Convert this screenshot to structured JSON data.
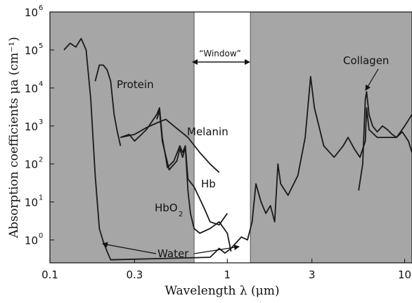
{
  "chart_data": {
    "type": "line",
    "xscale": "log",
    "yscale": "log",
    "xlim": [
      0.1,
      11
    ],
    "ylim": [
      0.25,
      1000000
    ],
    "xlabel": "Wavelength λ (μm)",
    "ylabel": "Absorption coefficients μa (cm⁻¹)",
    "x_ticks": [
      0.1,
      0.3,
      1,
      3,
      10
    ],
    "x_tick_labels": [
      "0.1",
      "0.3",
      "1",
      "3",
      "10"
    ],
    "y_ticks": [
      1,
      10,
      100,
      1000,
      10000,
      100000,
      1000000
    ],
    "y_tick_exponents": [
      "0",
      "1",
      "2",
      "3",
      "4",
      "5",
      "6"
    ],
    "y_tick_base": "10",
    "shaded_regions": [
      [
        0.1,
        0.65
      ],
      [
        1.35,
        11
      ]
    ],
    "shade_color": "#a6a6a6",
    "window": {
      "label": "“Window”",
      "range": [
        0.65,
        1.35
      ]
    },
    "series": [
      {
        "name": "Water",
        "points": [
          [
            0.12,
            100000
          ],
          [
            0.13,
            150000
          ],
          [
            0.14,
            120000
          ],
          [
            0.15,
            200000
          ],
          [
            0.16,
            100000
          ],
          [
            0.17,
            5000
          ],
          [
            0.18,
            50
          ],
          [
            0.19,
            2
          ],
          [
            0.2,
            0.9
          ],
          [
            0.21,
            0.5
          ],
          [
            0.22,
            0.3
          ],
          [
            0.8,
            0.35
          ],
          [
            0.9,
            0.6
          ],
          [
            0.97,
            0.45
          ],
          [
            1.05,
            0.6
          ],
          [
            1.2,
            1.2
          ],
          [
            1.3,
            1
          ],
          [
            1.38,
            3
          ],
          [
            1.45,
            30
          ],
          [
            1.55,
            10
          ],
          [
            1.65,
            5
          ],
          [
            1.75,
            8
          ],
          [
            1.85,
            3
          ],
          [
            1.93,
            100
          ],
          [
            2.0,
            30
          ],
          [
            2.2,
            15
          ],
          [
            2.5,
            50
          ],
          [
            2.75,
            500
          ],
          [
            2.95,
            20000
          ],
          [
            3.1,
            3000
          ],
          [
            3.5,
            300
          ],
          [
            4.0,
            150
          ],
          [
            4.5,
            300
          ],
          [
            4.8,
            500
          ],
          [
            5.2,
            250
          ],
          [
            5.6,
            150
          ],
          [
            6.0,
            400
          ],
          [
            6.1,
            3000
          ],
          [
            6.3,
            800
          ],
          [
            7,
            500
          ],
          [
            8,
            500
          ],
          [
            9,
            500
          ],
          [
            10,
            1000
          ],
          [
            11,
            2000
          ]
        ]
      },
      {
        "name": "Protein",
        "points": [
          [
            0.18,
            15000
          ],
          [
            0.19,
            40000
          ],
          [
            0.2,
            40000
          ],
          [
            0.21,
            30000
          ],
          [
            0.22,
            15000
          ],
          [
            0.23,
            2000
          ],
          [
            0.24,
            700
          ],
          [
            0.25,
            300
          ]
        ]
      },
      {
        "name": "Melanin",
        "points": [
          [
            0.25,
            500
          ],
          [
            0.3,
            600
          ],
          [
            0.35,
            900
          ],
          [
            0.4,
            1200
          ],
          [
            0.45,
            1500
          ],
          [
            0.5,
            1000
          ],
          [
            0.6,
            500
          ],
          [
            0.7,
            200
          ],
          [
            0.8,
            100
          ],
          [
            0.9,
            60
          ]
        ]
      },
      {
        "name": "Hb",
        "points": [
          [
            0.25,
            500
          ],
          [
            0.28,
            600
          ],
          [
            0.3,
            400
          ],
          [
            0.35,
            800
          ],
          [
            0.4,
            2000
          ],
          [
            0.415,
            3000
          ],
          [
            0.43,
            500
          ],
          [
            0.46,
            80
          ],
          [
            0.5,
            120
          ],
          [
            0.54,
            300
          ],
          [
            0.56,
            200
          ],
          [
            0.58,
            300
          ],
          [
            0.6,
            40
          ],
          [
            0.65,
            25
          ],
          [
            0.7,
            12
          ],
          [
            0.75,
            6
          ],
          [
            0.8,
            3
          ],
          [
            0.9,
            2.5
          ],
          [
            1.0,
            5
          ]
        ]
      },
      {
        "name": "HbO2",
        "points": [
          [
            0.4,
            1500
          ],
          [
            0.415,
            2500
          ],
          [
            0.43,
            400
          ],
          [
            0.47,
            70
          ],
          [
            0.52,
            120
          ],
          [
            0.54,
            250
          ],
          [
            0.56,
            150
          ],
          [
            0.58,
            280
          ],
          [
            0.6,
            20
          ],
          [
            0.62,
            5
          ],
          [
            0.65,
            2
          ],
          [
            0.7,
            1.5
          ],
          [
            0.8,
            2
          ],
          [
            0.9,
            3
          ],
          [
            1.0,
            1.5
          ],
          [
            1.05,
            0.5
          ]
        ]
      },
      {
        "name": "Collagen",
        "points": [
          [
            5.5,
            20
          ],
          [
            5.8,
            100
          ],
          [
            6.0,
            5000
          ],
          [
            6.1,
            8000
          ],
          [
            6.3,
            2000
          ],
          [
            6.6,
            1000
          ],
          [
            7.0,
            700
          ],
          [
            7.5,
            1000
          ],
          [
            8,
            800
          ],
          [
            8.5,
            600
          ],
          [
            9,
            500
          ],
          [
            9.7,
            700
          ],
          [
            10.5,
            400
          ],
          [
            11,
            200
          ]
        ]
      }
    ],
    "annotations": [
      {
        "text": "Protein"
      },
      {
        "text": "Melanin"
      },
      {
        "text": "Hb"
      },
      {
        "text": "HbO",
        "subscript": "2"
      },
      {
        "text": "Water"
      },
      {
        "text": "Collagen"
      }
    ]
  }
}
